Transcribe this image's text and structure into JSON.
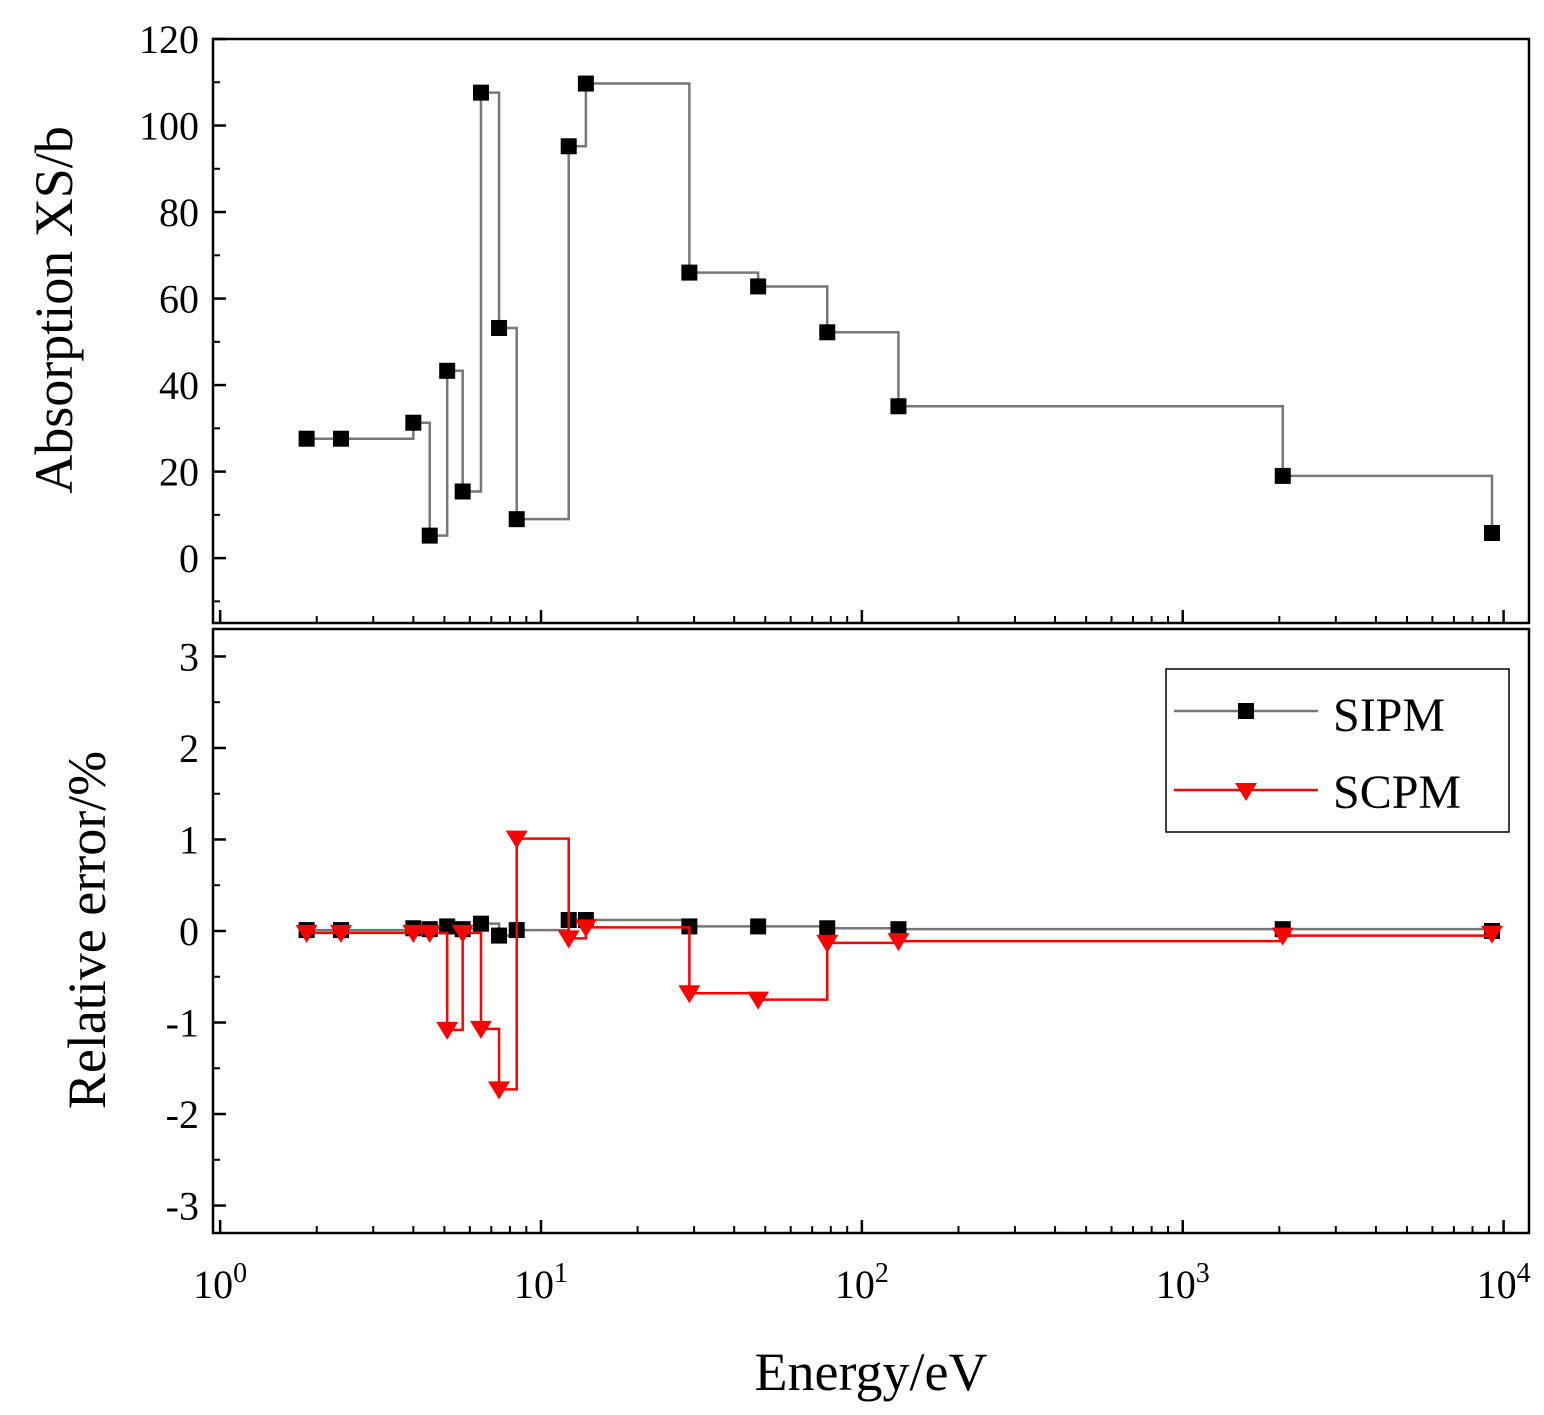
{
  "colors": {
    "sipm": "#777777",
    "sipm_marker": "#000000",
    "scpm": "#ff0000"
  },
  "chart_data": [
    {
      "type": "line",
      "step": "post",
      "panel": "top",
      "ylabel": "Absorption XS/b",
      "ylim": [
        -15,
        120
      ],
      "yticks": [
        0,
        20,
        40,
        60,
        80,
        100,
        120
      ],
      "ytick_labels": [
        "0",
        "20",
        "40",
        "60",
        "80",
        "100",
        "120"
      ],
      "xscale": "log",
      "xlim": [
        0.95,
        12000
      ],
      "series": [
        {
          "name": "SIPM",
          "marker": "square",
          "x": [
            1.86,
            2.38,
            4.0,
            4.5,
            5.1,
            5.7,
            6.5,
            7.4,
            8.4,
            12.2,
            13.8,
            29.0,
            47.5,
            78.0,
            130.0,
            2050.0,
            9200.0
          ],
          "y": [
            27.6,
            27.6,
            31.3,
            5.2,
            43.3,
            15.4,
            107.6,
            53.2,
            9.0,
            95.2,
            109.7,
            66.0,
            62.8,
            52.2,
            35.1,
            19.0,
            5.8
          ]
        }
      ]
    },
    {
      "type": "line",
      "step": "post",
      "panel": "bottom",
      "ylabel": "Relative error/%",
      "xlabel": "Energy/eV",
      "ylim": [
        -3.3,
        3.3
      ],
      "yticks": [
        -3,
        -2,
        -1,
        0,
        1,
        2,
        3
      ],
      "ytick_labels": [
        "-3",
        "-2",
        "-1",
        "0",
        "1",
        "2",
        "3"
      ],
      "xscale": "log",
      "xlim": [
        0.95,
        12000
      ],
      "xticks": [
        1,
        10,
        100,
        1000,
        10000
      ],
      "xtick_labels": [
        {
          "base": "10",
          "exp": "0"
        },
        {
          "base": "10",
          "exp": "1"
        },
        {
          "base": "10",
          "exp": "2"
        },
        {
          "base": "10",
          "exp": "3"
        },
        {
          "base": "10",
          "exp": "4"
        }
      ],
      "legend_position": "top-right",
      "series": [
        {
          "name": "SIPM",
          "marker": "square",
          "x": [
            1.86,
            2.38,
            4.0,
            4.5,
            5.1,
            5.7,
            6.5,
            7.4,
            8.4,
            12.2,
            13.8,
            29.0,
            47.5,
            78.0,
            130.0,
            2050.0,
            9200.0
          ],
          "y": [
            0.01,
            0.01,
            0.03,
            0.02,
            0.05,
            0.02,
            0.08,
            -0.05,
            0.01,
            0.12,
            0.12,
            0.05,
            0.05,
            0.03,
            0.02,
            0.02,
            0.0
          ]
        },
        {
          "name": "SCPM",
          "marker": "triangle-down",
          "x": [
            1.86,
            2.38,
            4.0,
            4.5,
            5.1,
            5.7,
            6.5,
            7.4,
            8.4,
            12.2,
            13.8,
            29.0,
            47.5,
            78.0,
            130.0,
            2050.0,
            9200.0
          ],
          "y": [
            -0.02,
            -0.02,
            -0.02,
            -0.02,
            -1.08,
            -0.02,
            -1.07,
            -1.73,
            1.01,
            -0.08,
            0.04,
            -0.68,
            -0.75,
            -0.13,
            -0.11,
            -0.05,
            -0.03
          ]
        }
      ]
    }
  ]
}
